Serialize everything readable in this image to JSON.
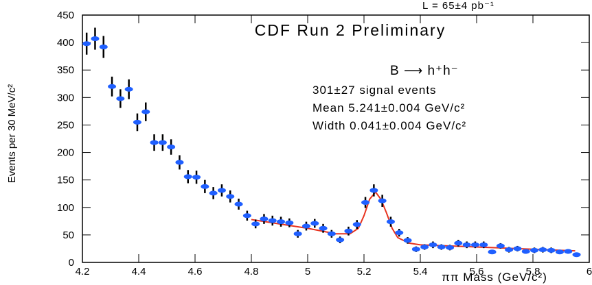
{
  "chart_data": {
    "type": "scatter",
    "title": "CDF Run 2 Preliminary",
    "luminosity": "L = 65±4 pb⁻¹",
    "annotations": [
      "B ⟶ h⁺h⁻",
      "301±27 signal events",
      "Mean 5.241±0.004 GeV/c²",
      "Width 0.041±0.004 GeV/c²"
    ],
    "x_label": "ππ Mass (GeV/c²)",
    "y_label": "Events per 30 MeV/c²",
    "color": "#1f5fff",
    "x": [
      4.215,
      4.245,
      4.275,
      4.305,
      4.335,
      4.365,
      4.395,
      4.425,
      4.455,
      4.485,
      4.515,
      4.545,
      4.575,
      4.605,
      4.635,
      4.665,
      4.695,
      4.725,
      4.755,
      4.785,
      4.815,
      4.845,
      4.875,
      4.905,
      4.935,
      4.965,
      4.995,
      5.025,
      5.055,
      5.085,
      5.115,
      5.145,
      5.175,
      5.205,
      5.235,
      5.265,
      5.295,
      5.325,
      5.355,
      5.385,
      5.415,
      5.445,
      5.475,
      5.505,
      5.535,
      5.565,
      5.595,
      5.625,
      5.655,
      5.685,
      5.715,
      5.745,
      5.775,
      5.805,
      5.835,
      5.865,
      5.895,
      5.925,
      5.955
    ],
    "values": [
      398,
      407,
      392,
      320,
      298,
      315,
      255,
      274,
      218,
      218,
      210,
      182,
      156,
      155,
      138,
      126,
      131,
      120,
      106,
      85,
      70,
      79,
      76,
      74,
      72,
      52,
      66,
      71,
      62,
      52,
      41,
      57,
      69,
      109,
      131,
      112,
      74,
      54,
      40,
      24,
      28,
      32,
      28,
      27,
      35,
      32,
      32,
      32,
      19,
      30,
      23,
      25,
      20,
      22,
      23,
      22,
      19,
      20,
      14
    ],
    "errors": [
      20,
      20,
      20,
      18,
      17,
      18,
      16,
      17,
      15,
      15,
      14,
      13,
      12,
      12,
      12,
      11,
      11,
      11,
      10,
      9,
      8,
      9,
      9,
      9,
      8,
      7,
      8,
      8,
      8,
      7,
      6,
      8,
      8,
      10,
      11,
      11,
      9,
      7,
      6,
      5,
      5,
      6,
      5,
      5,
      6,
      6,
      6,
      6,
      4,
      5,
      5,
      5,
      4,
      5,
      5,
      5,
      4,
      4,
      4
    ],
    "fit": {
      "color": "#e8321e",
      "x": [
        4.8,
        4.9,
        5.0,
        5.1,
        5.15,
        5.18,
        5.2,
        5.22,
        5.241,
        5.26,
        5.28,
        5.3,
        5.32,
        5.36,
        5.4,
        5.5,
        5.6,
        5.7,
        5.8,
        5.9,
        5.95
      ],
      "values": [
        78,
        70,
        62,
        52,
        52,
        62,
        85,
        115,
        128,
        115,
        90,
        62,
        45,
        35,
        32,
        30,
        28,
        26,
        24,
        22,
        21
      ]
    },
    "xlim": [
      4.2,
      6
    ],
    "ylim": [
      0,
      450
    ],
    "xticks": [
      4.2,
      4.4,
      4.6,
      4.8,
      5,
      5.2,
      5.4,
      5.6,
      5.8,
      6
    ],
    "yticks": [
      0,
      50,
      100,
      150,
      200,
      250,
      300,
      350,
      400,
      450
    ]
  }
}
